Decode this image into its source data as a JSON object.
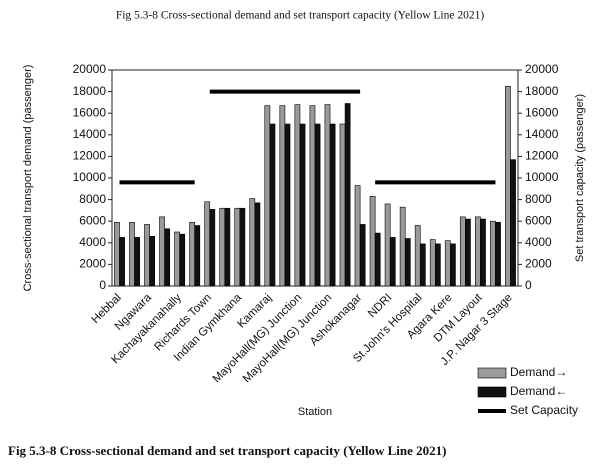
{
  "chart_data": {
    "type": "bar",
    "title": "Fig 5.3-8 Cross-sectional demand and set transport capacity (Yellow Line 2021)",
    "caption": "Fig 5.3-8 Cross-sectional demand and set transport capacity (Yellow Line 2021)",
    "ylabel": "Cross-sectional transport demand (passenger)",
    "y2label": "Set transport capacity (passenger)",
    "xlabel": "Station",
    "categories": [
      "Hebbal",
      null,
      "Ngawara",
      null,
      "Kachayakanahally",
      null,
      "Richards Town",
      null,
      "Indian Gymkhana",
      null,
      "Kamaraj",
      null,
      "MayoHall(MG) Junction",
      null,
      "MayoHall(MG) Junction",
      null,
      "Ashokanagar",
      null,
      "NDRI",
      null,
      "St.John's Hospital",
      null,
      "Agara Kere",
      null,
      "DTM Layout",
      null,
      "J.P. Nagar 3 Stage"
    ],
    "series": [
      {
        "name": "Demand→",
        "color": "#9a9a9a",
        "values": [
          5900,
          5900,
          5700,
          6400,
          5000,
          5900,
          7800,
          7200,
          7200,
          8100,
          16700,
          16700,
          16800,
          16700,
          16800,
          15000,
          9300,
          8300,
          7600,
          7300,
          5600,
          4300,
          4200,
          6400,
          6400,
          6000,
          18500
        ]
      },
      {
        "name": "Demand←",
        "color": "#111111",
        "values": [
          4500,
          4500,
          4600,
          5300,
          4800,
          5600,
          7100,
          7200,
          7200,
          7700,
          15000,
          15000,
          15000,
          15000,
          15000,
          16900,
          5700,
          4900,
          4500,
          4400,
          3900,
          3900,
          3900,
          6200,
          6200,
          5900,
          11700
        ]
      },
      {
        "name": "Set Capacity",
        "color": "#000000",
        "type": "line",
        "axis": "y2",
        "values": [
          9600,
          9600,
          9600,
          9600,
          9600,
          9600,
          18000,
          18000,
          18000,
          18000,
          18000,
          18000,
          18000,
          18000,
          18000,
          18000,
          18000,
          9600,
          9600,
          9600,
          9600,
          9600,
          9600,
          9600,
          9600,
          9600,
          null
        ]
      }
    ],
    "ylim": [
      0,
      20000
    ],
    "yticks": [
      0,
      2000,
      4000,
      6000,
      8000,
      10000,
      12000,
      14000,
      16000,
      18000,
      20000
    ],
    "y2lim": [
      0,
      20000
    ],
    "y2ticks": [
      0,
      2000,
      4000,
      6000,
      8000,
      10000,
      12000,
      14000,
      16000,
      18000,
      20000
    ],
    "legend": "bottom-right"
  }
}
